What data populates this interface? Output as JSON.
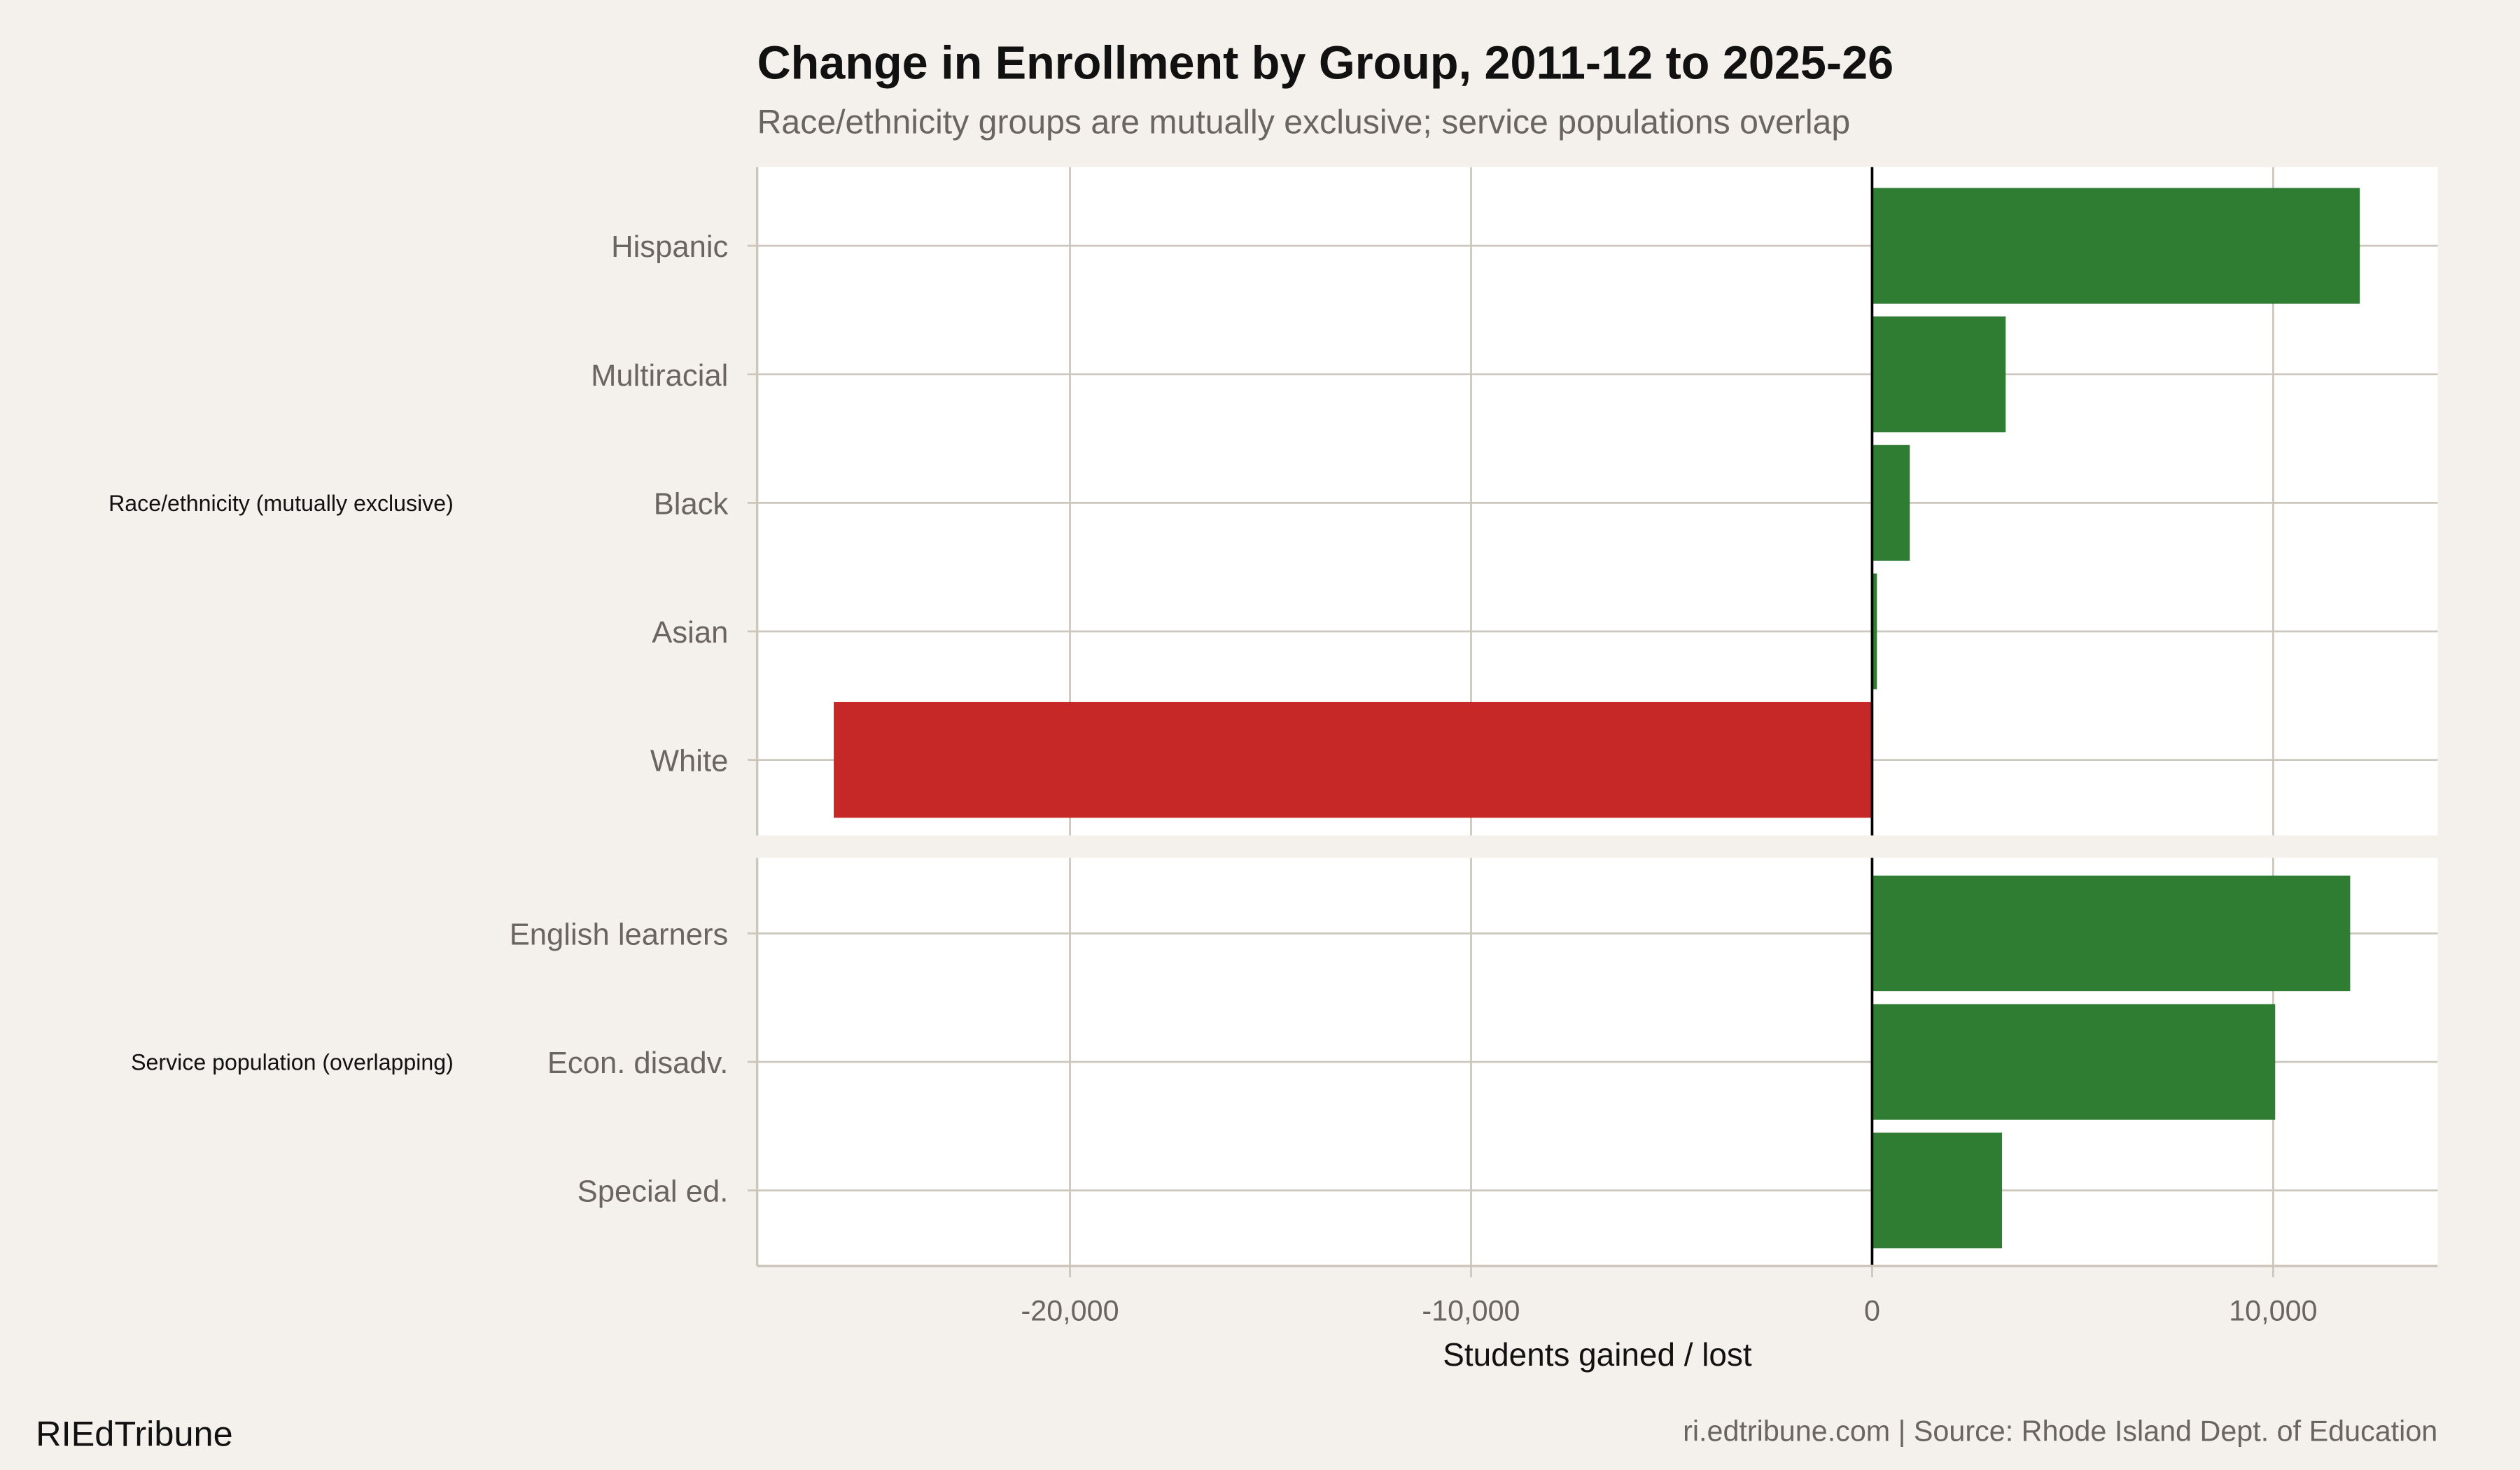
{
  "chart_data": {
    "type": "bar",
    "orientation": "horizontal",
    "title": "Change in Enrollment by Group, 2011-12 to 2025-26",
    "subtitle": "Race/ethnicity groups are mutually exclusive; service populations overlap",
    "xlabel": "Students gained / lost",
    "ylabel": "",
    "xlim": [
      -27800,
      14100
    ],
    "x_ticks": [
      -20000,
      -10000,
      0,
      10000
    ],
    "x_tick_labels": [
      "-20,000",
      "-10,000",
      "0",
      "10,000"
    ],
    "grid": true,
    "colors": {
      "positive": "#2e7d32",
      "negative": "#c62828",
      "background": "#f4f1ec",
      "panel": "#ffffff",
      "grid": "#ccc6bd"
    },
    "panels": [
      {
        "label": "Race/ethnicity (mutually exclusive)",
        "categories": [
          "Hispanic",
          "Multiracial",
          "Black",
          "Asian",
          "White"
        ],
        "values": [
          12160,
          3330,
          940,
          120,
          -25890
        ]
      },
      {
        "label": "Service population (overlapping)",
        "categories": [
          "English learners",
          "Econ. disadv.",
          "Special ed."
        ],
        "values": [
          11920,
          10050,
          3240
        ]
      }
    ]
  },
  "footer": {
    "brand": "RIEdTribune",
    "source": "ri.edtribune.com | Source: Rhode Island Dept. of Education"
  }
}
